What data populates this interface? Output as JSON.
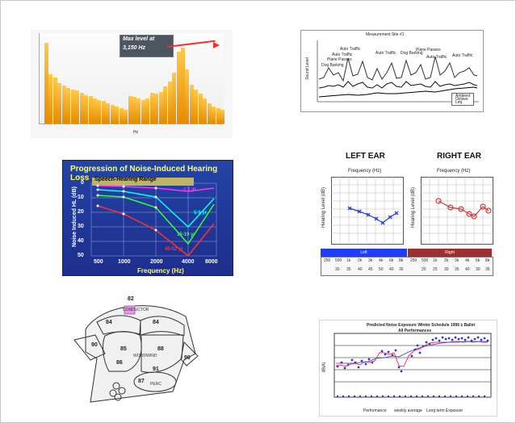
{
  "panels": {
    "spectrum": {
      "title": "Max level at 3,150 Hz",
      "line1": "Max level at",
      "line2": "3,150 Hz",
      "xlabel": "Hz",
      "bars": [
        95,
        58,
        54,
        48,
        45,
        42,
        40,
        39,
        36,
        33,
        32,
        30,
        28,
        27,
        24,
        22,
        20,
        18,
        16,
        32,
        31,
        30,
        28,
        30,
        36,
        35,
        37,
        44,
        50,
        60,
        85,
        90,
        64,
        46,
        40,
        35,
        30,
        24,
        20,
        18,
        16
      ]
    },
    "measurement": {
      "title": "Measurement Site #1",
      "ylabel": "Sound Level",
      "annotations": [
        "Auto Traffic",
        "Auto Traffic",
        "Dog Barking",
        "Plane Passes",
        "Auto Traffic",
        "Dog Barking",
        "Plane Passes",
        "Auto Traffic",
        "Auto Traffic"
      ],
      "legend": [
        "Ambient",
        "Octave",
        "Leq"
      ]
    },
    "progression": {
      "title": "Progression of Noise-Induced Hearing Loss",
      "band_label": "Speech-Hearing Range",
      "ylabel": "Noise Induced HL (dB)",
      "xlabel": "Frequency (Hz)",
      "ticks_x": [
        "500",
        "1000",
        "2000",
        "4000",
        "8000"
      ],
      "ticks_y": [
        "0",
        "10",
        "20",
        "30",
        "40",
        "50"
      ],
      "series": [
        {
          "name": "< 1 yr",
          "color": "#ff33ff"
        },
        {
          "name": "5-9 yr",
          "color": "#00ffff"
        },
        {
          "name": "15-19 yr",
          "color": "#33ff33"
        },
        {
          "name": "40-52 yr",
          "color": "#ff3333"
        }
      ]
    },
    "audiogram": {
      "left_title": "LEFT EAR",
      "right_title": "RIGHT EAR",
      "freq_label": "Frequency (Hz)",
      "level_label": "Hearing Level (dB)",
      "left_band": "Left",
      "right_band": "Right",
      "freqs": [
        "250",
        "500",
        "1k",
        "2k",
        "3k",
        "4k",
        "6k",
        "8k"
      ],
      "left_values": [
        "30",
        "35",
        "40",
        "45",
        "50",
        "40",
        "35"
      ],
      "right_values": [
        "20",
        "25",
        "30",
        "35",
        "40",
        "30",
        "35"
      ]
    },
    "stage": {
      "conductor_value": "82",
      "conductor_label": "CONDUCTOR",
      "left_84": "84",
      "right_84": "84",
      "value_90_left": "90",
      "value_85": "85",
      "value_88": "88",
      "value_86": "86",
      "value_90_right": "90",
      "value_91": "91",
      "value_87": "87",
      "woodwind": "WOODWIND",
      "perc": "PERC"
    },
    "noise": {
      "title": "Predicted Noise Exposure   Winter Schedule 1996 ± Ballet",
      "subtitle": "All Performances",
      "ylabel": "dB(A)",
      "legend": [
        "Performance",
        "weekly average",
        "Long term Exposure"
      ]
    }
  }
}
